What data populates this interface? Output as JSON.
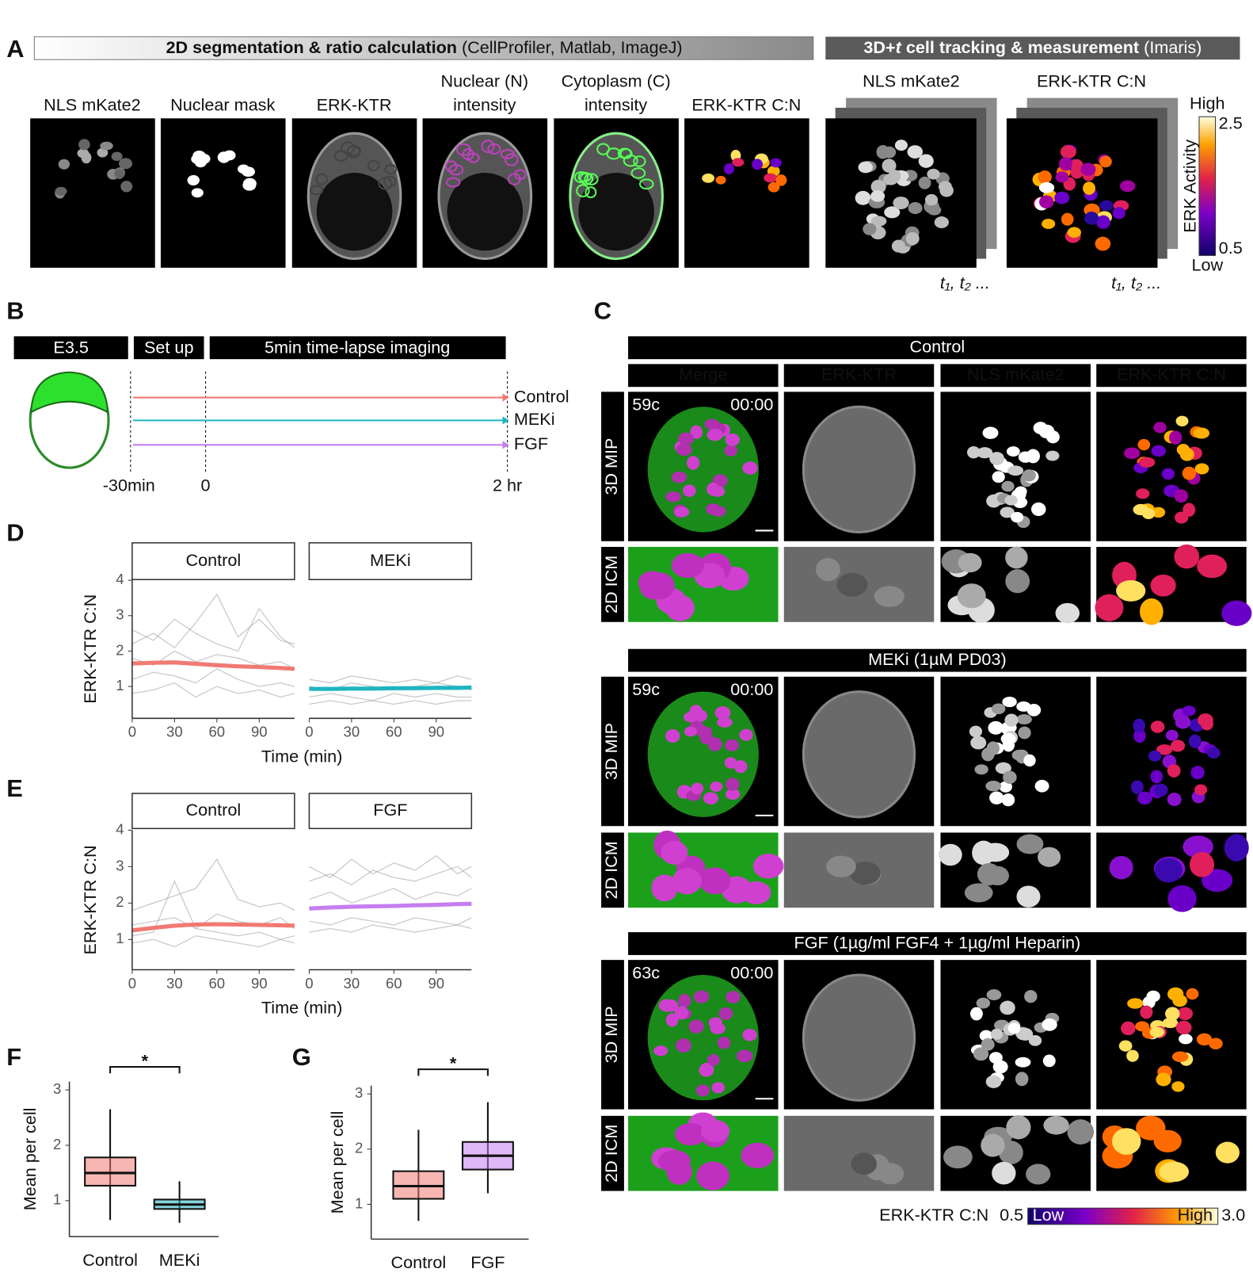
{
  "panel_a": {
    "letter": "A",
    "banner_2d": {
      "bold": "2D segmentation & ratio calculation",
      "normal": "(CellProfiler, Matlab, ImageJ)"
    },
    "banner_3d": {
      "bold_start": "3D+",
      "italic": "t",
      "bold_end": "cell tracking & measurement",
      "normal": "(Imaris)"
    },
    "image_labels": [
      [
        "NLS mKate2"
      ],
      [
        "Nuclear mask"
      ],
      [
        "ERK-KTR"
      ],
      [
        "Nuclear (N)",
        "intensity"
      ],
      [
        "Cytoplasm (C)",
        "intensity"
      ],
      [
        "ERK-KTR C:N"
      ]
    ],
    "image_3d_labels": [
      "NLS mKate2",
      "ERK-KTR C:N"
    ],
    "time_points": [
      "t₁, t₂ ...",
      "t₁, t₂ ..."
    ],
    "colorbar": {
      "title": "ERK Activity",
      "high_label": "High",
      "low_label": "Low",
      "max": 2.5,
      "min": 0.5
    }
  },
  "panel_b": {
    "letter": "B",
    "stages": [
      "E3.5",
      "Set up",
      "5min time-lapse imaging"
    ],
    "conditions": [
      {
        "label": "Control",
        "color": "#f07a72"
      },
      {
        "label": "MEKi",
        "color": "#1fb5c0"
      },
      {
        "label": "FGF",
        "color": "#c57ef0"
      }
    ],
    "timeline": [
      "-30min",
      "0",
      "2 hr"
    ]
  },
  "panel_c": {
    "letter": "C",
    "columns": [
      {
        "label": "Merge",
        "color": "#ffffff"
      },
      {
        "label": "ERK-KTR",
        "color": "#3ddc3d"
      },
      {
        "label": "NLS mKate2",
        "color": "#e040e0"
      },
      {
        "label": "ERK-KTR C:N",
        "color": "#ffffff"
      }
    ],
    "groups": [
      {
        "title": "Control",
        "cells": "59c",
        "time": "00:00",
        "rows": [
          "3D MIP",
          "2D ICM"
        ]
      },
      {
        "title": "MEKi (1µM PD03)",
        "cells": "59c",
        "time": "00:00",
        "rows": [
          "3D MIP",
          "2D ICM"
        ]
      },
      {
        "title": "FGF (1µg/ml FGF4 + 1µg/ml Heparin)",
        "cells": "63c",
        "time": "00:00",
        "rows": [
          "3D MIP",
          "2D ICM"
        ]
      }
    ],
    "colorbar": {
      "label": "ERK-KTR C:N",
      "min": 0.5,
      "max": {
        "value": 3,
        "label": "3.0"
      },
      "low_label": "Low",
      "high_label": "High"
    }
  },
  "chart_data": [
    {
      "letter": "D",
      "type": "line",
      "ylabel": "ERK-KTR C:N",
      "xlabel": "Time (min)",
      "xlim": [
        0,
        115
      ],
      "xticks": [
        0,
        30,
        60,
        90
      ],
      "ylim": [
        0.1,
        4.02
      ],
      "yticks": [
        1,
        2,
        3,
        4
      ],
      "facets": [
        {
          "title": "Control",
          "x": [
            0,
            15,
            30,
            45,
            60,
            75,
            90,
            105,
            115
          ],
          "series": [
            {
              "color": "#9a9a9a",
              "values": [
                2.2,
                2.5,
                2.1,
                2.8,
                3.6,
                2.4,
                2.9,
                2.3,
                2.2
              ]
            },
            {
              "color": "#9a9a9a",
              "values": [
                1.2,
                1.4,
                1.3,
                1.1,
                1.5,
                1.2,
                1.0,
                1.1,
                1.0
              ]
            },
            {
              "color": "#9a9a9a",
              "values": [
                1.8,
                1.6,
                2.0,
                1.7,
                1.9,
                1.8,
                1.6,
                1.7,
                1.5
              ]
            },
            {
              "color": "#9a9a9a",
              "values": [
                0.8,
                0.9,
                1.1,
                0.7,
                1.0,
                0.8,
                0.9,
                0.7,
                0.8
              ]
            },
            {
              "color": "#9a9a9a",
              "values": [
                2.6,
                2.3,
                2.9,
                2.5,
                2.2,
                2.0,
                3.2,
                2.4,
                2.1
              ]
            },
            {
              "color": "#f07a72",
              "values": [
                1.65,
                1.67,
                1.68,
                1.64,
                1.6,
                1.57,
                1.55,
                1.52,
                1.5
              ]
            }
          ]
        },
        {
          "title": "MEKi",
          "x": [
            0,
            15,
            30,
            45,
            60,
            75,
            90,
            105,
            115
          ],
          "series": [
            {
              "color": "#9a9a9a",
              "values": [
                1.2,
                1.1,
                1.3,
                1.2,
                1.1,
                1.2,
                1.1,
                1.3,
                1.2
              ]
            },
            {
              "color": "#9a9a9a",
              "values": [
                0.7,
                0.8,
                0.7,
                0.6,
                0.8,
                0.7,
                0.8,
                0.7,
                0.7
              ]
            },
            {
              "color": "#9a9a9a",
              "values": [
                1.0,
                0.9,
                1.1,
                1.0,
                0.9,
                1.0,
                1.1,
                1.0,
                0.9
              ]
            },
            {
              "color": "#9a9a9a",
              "values": [
                0.5,
                0.6,
                0.5,
                0.6,
                0.5,
                0.6,
                0.5,
                0.6,
                0.6
              ]
            },
            {
              "color": "#1fb5c0",
              "values": [
                0.93,
                0.93,
                0.94,
                0.94,
                0.95,
                0.95,
                0.96,
                0.96,
                0.97
              ]
            }
          ]
        }
      ]
    },
    {
      "letter": "E",
      "type": "line",
      "ylabel": "ERK-KTR C:N",
      "xlabel": "Time (min)",
      "xlim": [
        0,
        115
      ],
      "xticks": [
        0,
        30,
        60,
        90
      ],
      "ylim": [
        0.17,
        4.0
      ],
      "yticks": [
        1,
        2,
        3,
        4
      ],
      "facets": [
        {
          "title": "Control",
          "x": [
            0,
            15,
            30,
            45,
            60,
            75,
            90,
            105,
            115
          ],
          "series": [
            {
              "color": "#9a9a9a",
              "values": [
                1.8,
                2.0,
                2.2,
                2.4,
                3.2,
                2.1,
                1.9,
                2.0,
                1.8
              ]
            },
            {
              "color": "#9a9a9a",
              "values": [
                0.9,
                1.0,
                0.8,
                1.1,
                1.0,
                0.9,
                0.8,
                1.0,
                0.9
              ]
            },
            {
              "color": "#9a9a9a",
              "values": [
                1.4,
                1.5,
                1.6,
                1.3,
                1.7,
                1.5,
                1.4,
                1.6,
                1.3
              ]
            },
            {
              "color": "#9a9a9a",
              "values": [
                1.1,
                1.2,
                2.6,
                1.3,
                1.2,
                1.1,
                1.2,
                1.0,
                1.1
              ]
            },
            {
              "color": "#f07a72",
              "values": [
                1.25,
                1.32,
                1.38,
                1.41,
                1.42,
                1.41,
                1.4,
                1.39,
                1.38
              ]
            }
          ]
        },
        {
          "title": "FGF",
          "x": [
            0,
            15,
            30,
            45,
            60,
            75,
            90,
            105,
            115
          ],
          "series": [
            {
              "color": "#9a9a9a",
              "values": [
                2.6,
                2.8,
                2.5,
                2.9,
                2.7,
                2.6,
                2.8,
                3.0,
                2.7
              ]
            },
            {
              "color": "#9a9a9a",
              "values": [
                1.5,
                1.4,
                1.6,
                1.5,
                1.4,
                1.6,
                1.5,
                1.4,
                1.6
              ]
            },
            {
              "color": "#9a9a9a",
              "values": [
                2.1,
                2.3,
                2.0,
                2.2,
                2.4,
                2.1,
                2.3,
                2.2,
                2.4
              ]
            },
            {
              "color": "#9a9a9a",
              "values": [
                1.2,
                1.3,
                1.2,
                1.4,
                1.3,
                1.2,
                1.3,
                1.4,
                1.3
              ]
            },
            {
              "color": "#9a9a9a",
              "values": [
                3.0,
                2.7,
                3.2,
                2.8,
                3.1,
                2.9,
                3.3,
                2.8,
                3.0
              ]
            },
            {
              "color": "#c57ef0",
              "values": [
                1.85,
                1.88,
                1.9,
                1.91,
                1.92,
                1.94,
                1.95,
                1.97,
                1.98
              ]
            }
          ]
        }
      ]
    },
    {
      "letter": "F",
      "type": "box",
      "ylabel": "Mean per cell",
      "significance": "*",
      "categories": [
        "Control",
        "MEKi"
      ],
      "colors": [
        "#f07a72",
        "#1fb5c0"
      ],
      "ylim": [
        0.35,
        3.15
      ],
      "yticks": [
        1,
        2,
        3
      ],
      "whisker_low": [
        0.65,
        0.6
      ],
      "q1": [
        1.27,
        0.85
      ],
      "median": [
        1.5,
        0.93
      ],
      "q3": [
        1.78,
        1.02
      ],
      "whisker_high": [
        2.65,
        1.35
      ]
    },
    {
      "letter": "G",
      "type": "box",
      "ylabel": "Mean per cell",
      "significance": "*",
      "categories": [
        "Control",
        "FGF"
      ],
      "colors": [
        "#f07a72",
        "#c57ef0"
      ],
      "ylim": [
        0.37,
        3.15
      ],
      "yticks": [
        1,
        2,
        3
      ],
      "whisker_low": [
        0.7,
        1.2
      ],
      "q1": [
        1.1,
        1.63
      ],
      "median": [
        1.33,
        1.88
      ],
      "q3": [
        1.6,
        2.13
      ],
      "whisker_high": [
        2.35,
        2.85
      ]
    }
  ]
}
